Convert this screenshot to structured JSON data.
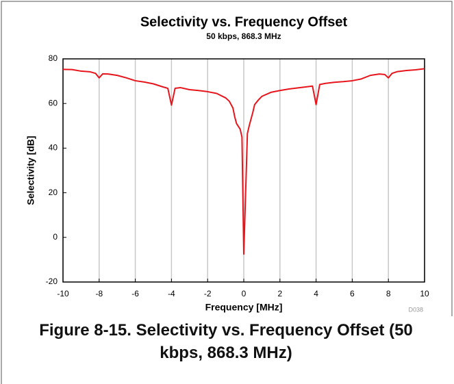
{
  "chart_data": {
    "type": "line",
    "title": "Selectivity vs. Frequency Offset",
    "subtitle": "50 kbps, 868.3 MHz",
    "xlabel": "Frequency [MHz]",
    "ylabel": "Selectivity [dB]",
    "note": "D038",
    "x": [
      -10,
      -9.5,
      -9,
      -8.5,
      -8.2,
      -8,
      -7.8,
      -7.5,
      -7,
      -6.5,
      -6,
      -5.5,
      -5,
      -4.5,
      -4.2,
      -4,
      -3.8,
      -3.5,
      -3,
      -2.5,
      -2,
      -1.5,
      -1,
      -0.8,
      -0.6,
      -0.5,
      -0.4,
      -0.2,
      -0.1,
      0,
      0.2,
      0.3,
      0.5,
      0.6,
      0.8,
      1,
      1.5,
      2,
      2.5,
      3,
      3.5,
      3.8,
      4,
      4.2,
      4.5,
      5,
      5.5,
      6,
      6.5,
      7,
      7.5,
      7.8,
      8,
      8.2,
      8.5,
      9,
      9.5,
      10
    ],
    "series": [
      {
        "name": "Selectivity",
        "color": "#e8141b",
        "values": [
          75.3,
          75.2,
          74.5,
          74.2,
          73.5,
          71.5,
          73.3,
          73.2,
          72.6,
          71.5,
          70.2,
          69.6,
          68.8,
          67.5,
          66.8,
          59.3,
          66.8,
          67.1,
          66.2,
          65.8,
          65.3,
          64.5,
          62.5,
          61,
          58,
          54,
          51,
          48.5,
          45,
          -7.5,
          46.5,
          50,
          56,
          59.5,
          61.5,
          63.2,
          65,
          65.8,
          66.5,
          67,
          67.5,
          67.8,
          59.5,
          68.5,
          69,
          69.5,
          69.8,
          70.2,
          71,
          72.6,
          73.2,
          73,
          71.5,
          73.5,
          74.3,
          74.8,
          75.1,
          75.6
        ]
      }
    ],
    "xlim": [
      -10,
      10
    ],
    "xticks": [
      -10,
      -8,
      -6,
      -4,
      -2,
      0,
      2,
      4,
      6,
      8,
      10
    ],
    "ylim": [
      -20,
      80
    ],
    "yticks": [
      -20,
      0,
      20,
      40,
      60,
      80
    ],
    "grid": "x"
  },
  "figure_caption": "Figure 8-15. Selectivity vs. Frequency Offset (50 kbps, 868.3 MHz)"
}
